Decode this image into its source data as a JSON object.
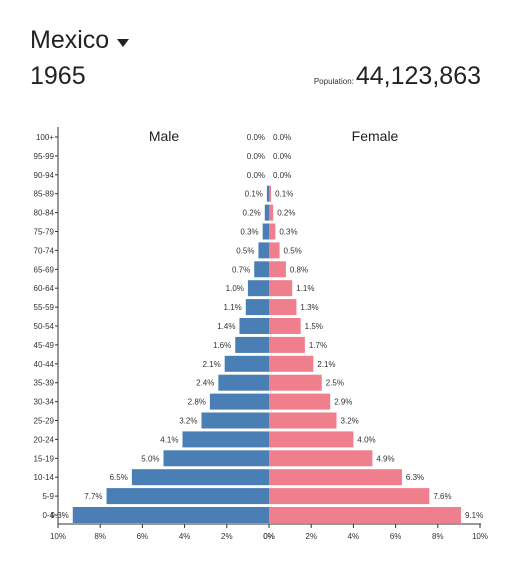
{
  "header": {
    "country": "Mexico",
    "year": "1965",
    "population_label": "Population:",
    "population_value": "44,123,863"
  },
  "colors": {
    "male": "#4a7fb5",
    "female": "#ef7f8d"
  },
  "chart_data": {
    "type": "bar",
    "orientation": "horizontal-population-pyramid",
    "male_label": "Male",
    "female_label": "Female",
    "age_groups": [
      "0-4",
      "5-9",
      "10-14",
      "15-19",
      "20-24",
      "25-29",
      "30-34",
      "35-39",
      "40-44",
      "45-49",
      "50-54",
      "55-59",
      "60-64",
      "65-69",
      "70-74",
      "75-79",
      "80-84",
      "85-89",
      "90-94",
      "95-99",
      "100+"
    ],
    "series": [
      {
        "name": "Male",
        "values": [
          9.3,
          7.7,
          6.5,
          5.0,
          4.1,
          3.2,
          2.8,
          2.4,
          2.1,
          1.6,
          1.4,
          1.1,
          1.0,
          0.7,
          0.5,
          0.3,
          0.2,
          0.1,
          0.0,
          0.0,
          0.0
        ]
      },
      {
        "name": "Female",
        "values": [
          9.1,
          7.6,
          6.3,
          4.9,
          4.0,
          3.2,
          2.9,
          2.5,
          2.1,
          1.7,
          1.5,
          1.3,
          1.1,
          0.8,
          0.5,
          0.3,
          0.2,
          0.1,
          0.0,
          0.0,
          0.0
        ]
      }
    ],
    "male_ticks": [
      "10%",
      "8%",
      "6%",
      "4%",
      "2%",
      "0%"
    ],
    "female_ticks": [
      "0%",
      "2%",
      "4%",
      "6%",
      "8%",
      "10%"
    ],
    "xlim": [
      0,
      10
    ]
  }
}
